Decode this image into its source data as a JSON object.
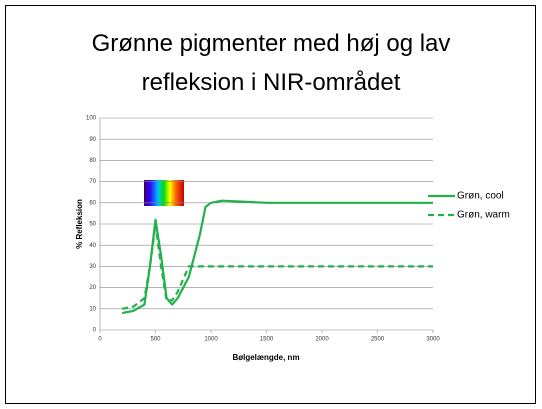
{
  "chart_data": {
    "type": "line",
    "title": "Grønne pigmenter med høj og lav refleksion i NIR-området",
    "xlabel": "Bølgelængde, nm",
    "ylabel": "% Refleksion",
    "xlim": [
      0,
      3000
    ],
    "xticks": [
      0,
      500,
      1000,
      1500,
      2000,
      2500,
      3000
    ],
    "ylim": [
      0,
      100
    ],
    "yticks": [
      0,
      10,
      20,
      30,
      40,
      50,
      60,
      70,
      80,
      90,
      100
    ],
    "grid": true,
    "legend": "right",
    "series": [
      {
        "name": "Grøn, cool",
        "color": "#22b04b",
        "line_style": "solid",
        "x": [
          200,
          300,
          400,
          450,
          500,
          550,
          600,
          650,
          700,
          800,
          900,
          950,
          1000,
          1100,
          1500,
          2000,
          2500,
          3000
        ],
        "values": [
          8,
          9,
          12,
          30,
          52,
          35,
          15,
          12,
          15,
          25,
          45,
          58,
          60,
          61,
          60,
          60,
          60,
          60
        ]
      },
      {
        "name": "Grøn, warm",
        "color": "#22b04b",
        "line_style": "dashed",
        "x": [
          200,
          300,
          400,
          450,
          500,
          550,
          600,
          650,
          700,
          800,
          850,
          1000,
          1500,
          2000,
          2500,
          3000
        ],
        "values": [
          10,
          11,
          15,
          30,
          50,
          30,
          14,
          14,
          18,
          30,
          30,
          30,
          30,
          30,
          30,
          30
        ]
      }
    ]
  }
}
